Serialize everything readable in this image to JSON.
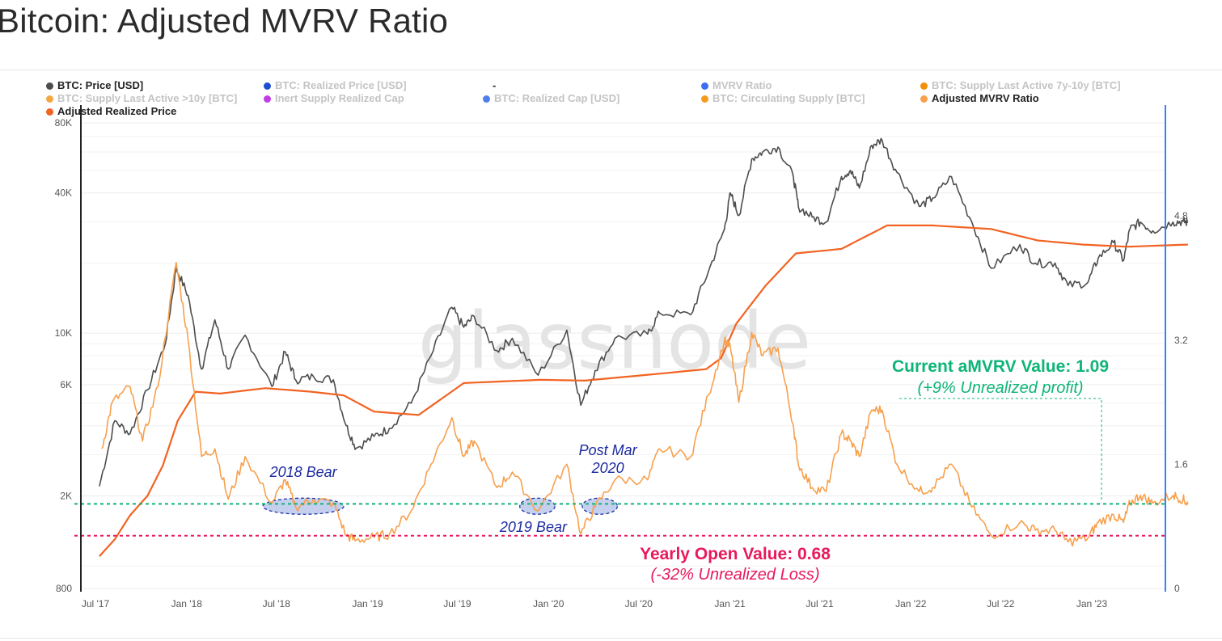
{
  "page": {
    "title": "Bitcoin: Adjusted MVRV Ratio"
  },
  "legend": [
    {
      "label": "BTC: Price [USD]",
      "color": "#4d4d4d",
      "active": true
    },
    {
      "label": "BTC: Realized Price [USD]",
      "color": "#1f4fd1",
      "active": false
    },
    {
      "label": "-",
      "color": "",
      "active": true
    },
    {
      "label": "MVRV Ratio",
      "color": "#3d6df2",
      "active": false
    },
    {
      "label": "BTC: Supply Last Active 7y-10y [BTC]",
      "color": "#f0900a",
      "active": false
    },
    {
      "label": "BTC: Supply Last Active >10y [BTC]",
      "color": "#f5a742",
      "active": false
    },
    {
      "label": "Inert Supply Realized Cap",
      "color": "#c23ce6",
      "active": false
    },
    {
      "label": "BTC: Realized Cap [USD]",
      "color": "#4d7ff0",
      "active": false
    },
    {
      "label": "BTC: Circulating Supply [BTC]",
      "color": "#f59a1e",
      "active": false
    },
    {
      "label": "Adjusted MVRV Ratio",
      "color": "#f7a04d",
      "active": true
    },
    {
      "label": "Adjusted Realized Price",
      "color": "#f26322",
      "active": true
    }
  ],
  "watermark": "glassnode",
  "chart_data": {
    "type": "line",
    "x_ticks": [
      "Jul '17",
      "Jan '18",
      "Jul '18",
      "Jan '19",
      "Jul '19",
      "Jan '20",
      "Jul '20",
      "Jan '21",
      "Jul '21",
      "Jan '22",
      "Jul '22",
      "Jan '23"
    ],
    "y_left": {
      "scale": "log",
      "range": [
        800,
        80000
      ],
      "ticks": [
        "80K",
        "40K",
        "10K",
        "6K",
        "2K",
        "800"
      ],
      "tick_values": [
        80000,
        40000,
        10000,
        6000,
        2000,
        800
      ]
    },
    "y_right": {
      "scale": "linear",
      "range": [
        0,
        6
      ],
      "ticks": [
        "4.8",
        "3.2",
        "1.6",
        "0"
      ],
      "tick_values": [
        4.8,
        3.2,
        1.6,
        0
      ]
    },
    "series": [
      {
        "name": "BTC: Price [USD]",
        "color": "#4d4d4d",
        "axis": "left",
        "points": [
          [
            "2017-07-15",
            2200
          ],
          [
            "2017-08-15",
            4200
          ],
          [
            "2017-09-15",
            3700
          ],
          [
            "2017-10-20",
            5700
          ],
          [
            "2017-11-25",
            9000
          ],
          [
            "2017-12-17",
            19000
          ],
          [
            "2018-01-10",
            14500
          ],
          [
            "2018-02-06",
            7000
          ],
          [
            "2018-03-05",
            11400
          ],
          [
            "2018-04-01",
            7000
          ],
          [
            "2018-05-05",
            9800
          ],
          [
            "2018-06-28",
            5900
          ],
          [
            "2018-07-25",
            8300
          ],
          [
            "2018-08-15",
            6300
          ],
          [
            "2018-09-20",
            6500
          ],
          [
            "2018-10-30",
            6300
          ],
          [
            "2018-11-25",
            4000
          ],
          [
            "2018-12-15",
            3200
          ],
          [
            "2019-01-20",
            3600
          ],
          [
            "2019-02-20",
            3900
          ],
          [
            "2019-04-05",
            5000
          ],
          [
            "2019-05-15",
            8000
          ],
          [
            "2019-06-26",
            12900
          ],
          [
            "2019-07-20",
            10600
          ],
          [
            "2019-08-10",
            11800
          ],
          [
            "2019-09-25",
            8400
          ],
          [
            "2019-10-26",
            9500
          ],
          [
            "2019-12-17",
            6600
          ],
          [
            "2020-02-13",
            10300
          ],
          [
            "2020-03-12",
            4900
          ],
          [
            "2020-04-10",
            6900
          ],
          [
            "2020-05-20",
            9500
          ],
          [
            "2020-07-25",
            9900
          ],
          [
            "2020-08-18",
            12200
          ],
          [
            "2020-10-20",
            12000
          ],
          [
            "2020-11-25",
            18500
          ],
          [
            "2020-12-27",
            28000
          ],
          [
            "2021-01-08",
            40000
          ],
          [
            "2021-01-25",
            32000
          ],
          [
            "2021-02-20",
            56000
          ],
          [
            "2021-03-14",
            60000
          ],
          [
            "2021-04-14",
            63000
          ],
          [
            "2021-05-15",
            47000
          ],
          [
            "2021-05-25",
            35000
          ],
          [
            "2021-06-22",
            31500
          ],
          [
            "2021-07-20",
            30000
          ],
          [
            "2021-08-20",
            47000
          ],
          [
            "2021-09-07",
            50000
          ],
          [
            "2021-09-25",
            42000
          ],
          [
            "2021-10-20",
            64000
          ],
          [
            "2021-11-10",
            67500
          ],
          [
            "2021-12-10",
            49000
          ],
          [
            "2022-01-24",
            35000
          ],
          [
            "2022-02-20",
            38000
          ],
          [
            "2022-03-30",
            47000
          ],
          [
            "2022-05-10",
            30000
          ],
          [
            "2022-06-18",
            19000
          ],
          [
            "2022-08-15",
            24000
          ],
          [
            "2022-09-15",
            20000
          ],
          [
            "2022-10-25",
            20000
          ],
          [
            "2022-11-20",
            16000
          ],
          [
            "2022-12-30",
            16500
          ],
          [
            "2023-01-20",
            21000
          ],
          [
            "2023-02-20",
            24500
          ],
          [
            "2023-03-12",
            20500
          ],
          [
            "2023-03-25",
            28000
          ],
          [
            "2023-04-15",
            30000
          ],
          [
            "2023-05-10",
            27500
          ],
          [
            "2023-06-20",
            30000
          ],
          [
            "2023-07-10",
            30200
          ],
          [
            "2023-07-20",
            29800
          ]
        ]
      },
      {
        "name": "Adjusted Realized Price",
        "color": "#f26322",
        "axis": "left",
        "points": [
          [
            "2017-07-15",
            1100
          ],
          [
            "2017-08-15",
            1300
          ],
          [
            "2017-09-15",
            1650
          ],
          [
            "2017-10-20",
            2000
          ],
          [
            "2017-11-20",
            2700
          ],
          [
            "2017-12-20",
            4200
          ],
          [
            "2018-01-25",
            5600
          ],
          [
            "2018-03-15",
            5500
          ],
          [
            "2018-06-15",
            5800
          ],
          [
            "2018-09-15",
            5600
          ],
          [
            "2018-11-20",
            5400
          ],
          [
            "2019-01-20",
            4600
          ],
          [
            "2019-04-20",
            4450
          ],
          [
            "2019-07-20",
            6100
          ],
          [
            "2019-12-20",
            6300
          ],
          [
            "2020-03-20",
            6250
          ],
          [
            "2020-08-20",
            6700
          ],
          [
            "2020-11-20",
            7000
          ],
          [
            "2020-12-20",
            7800
          ],
          [
            "2021-01-20",
            11000
          ],
          [
            "2021-03-20",
            16000
          ],
          [
            "2021-05-20",
            22000
          ],
          [
            "2021-08-20",
            23000
          ],
          [
            "2021-11-20",
            29000
          ],
          [
            "2022-02-20",
            29000
          ],
          [
            "2022-06-18",
            28000
          ],
          [
            "2022-09-20",
            25000
          ],
          [
            "2022-12-20",
            24000
          ],
          [
            "2023-03-20",
            23500
          ],
          [
            "2023-07-20",
            24000
          ]
        ]
      },
      {
        "name": "Adjusted MVRV Ratio",
        "color": "#f7a04d",
        "axis": "right",
        "points": [
          [
            "2017-07-20",
            1.8
          ],
          [
            "2017-08-10",
            2.4
          ],
          [
            "2017-09-15",
            2.6
          ],
          [
            "2017-10-10",
            1.9
          ],
          [
            "2017-11-10",
            2.6
          ],
          [
            "2017-12-17",
            4.2
          ],
          [
            "2018-01-10",
            3.2
          ],
          [
            "2018-02-06",
            1.7
          ],
          [
            "2018-03-05",
            1.8
          ],
          [
            "2018-04-01",
            1.15
          ],
          [
            "2018-05-05",
            1.7
          ],
          [
            "2018-06-28",
            1.1
          ],
          [
            "2018-07-25",
            1.4
          ],
          [
            "2018-08-15",
            1.05
          ],
          [
            "2018-09-20",
            1.15
          ],
          [
            "2018-10-30",
            1.1
          ],
          [
            "2018-11-25",
            0.68
          ],
          [
            "2018-12-15",
            0.62
          ],
          [
            "2019-01-20",
            0.66
          ],
          [
            "2019-02-20",
            0.7
          ],
          [
            "2019-04-05",
            1.0
          ],
          [
            "2019-05-15",
            1.6
          ],
          [
            "2019-06-26",
            2.2
          ],
          [
            "2019-07-20",
            1.7
          ],
          [
            "2019-08-10",
            1.9
          ],
          [
            "2019-09-25",
            1.3
          ],
          [
            "2019-10-26",
            1.5
          ],
          [
            "2019-12-17",
            1.0
          ],
          [
            "2020-02-13",
            1.6
          ],
          [
            "2020-03-12",
            0.7
          ],
          [
            "2020-04-10",
            1.05
          ],
          [
            "2020-05-20",
            1.4
          ],
          [
            "2020-07-25",
            1.4
          ],
          [
            "2020-08-18",
            1.8
          ],
          [
            "2020-10-20",
            1.7
          ],
          [
            "2020-11-25",
            2.5
          ],
          [
            "2020-12-27",
            3.2
          ],
          [
            "2021-01-08",
            3.1
          ],
          [
            "2021-01-25",
            2.4
          ],
          [
            "2021-02-20",
            3.3
          ],
          [
            "2021-03-14",
            3.0
          ],
          [
            "2021-04-14",
            3.1
          ],
          [
            "2021-05-15",
            2.1
          ],
          [
            "2021-05-25",
            1.6
          ],
          [
            "2021-06-22",
            1.3
          ],
          [
            "2021-07-20",
            1.25
          ],
          [
            "2021-08-20",
            2.0
          ],
          [
            "2021-09-07",
            1.9
          ],
          [
            "2021-09-25",
            1.7
          ],
          [
            "2021-10-20",
            2.3
          ],
          [
            "2021-11-10",
            2.3
          ],
          [
            "2021-12-10",
            1.6
          ],
          [
            "2022-01-24",
            1.25
          ],
          [
            "2022-02-20",
            1.3
          ],
          [
            "2022-03-30",
            1.6
          ],
          [
            "2022-05-10",
            1.05
          ],
          [
            "2022-06-18",
            0.68
          ],
          [
            "2022-08-15",
            0.85
          ],
          [
            "2022-09-15",
            0.75
          ],
          [
            "2022-10-25",
            0.75
          ],
          [
            "2022-11-20",
            0.6
          ],
          [
            "2022-12-30",
            0.65
          ],
          [
            "2023-01-20",
            0.85
          ],
          [
            "2023-02-20",
            0.95
          ],
          [
            "2023-03-12",
            0.85
          ],
          [
            "2023-03-25",
            1.1
          ],
          [
            "2023-04-15",
            1.2
          ],
          [
            "2023-05-10",
            1.1
          ],
          [
            "2023-06-20",
            1.2
          ],
          [
            "2023-07-10",
            1.15
          ],
          [
            "2023-07-20",
            1.09
          ]
        ]
      }
    ],
    "reference_lines": [
      {
        "label": "Current aMVRV Value: 1.09",
        "sublabel": "(+9% Unrealized profit)",
        "value": 1.09,
        "color": "#0fb478"
      },
      {
        "label": "Yearly Open Value: 0.68",
        "sublabel": "(-32% Unrealized Loss)",
        "value": 0.68,
        "color": "#e8195c"
      }
    ],
    "annotations": [
      {
        "text": "2018 Bear",
        "from": "2018-06-10",
        "to": "2018-11-20",
        "value": 1.06
      },
      {
        "text": "2019 Bear",
        "from": "2019-11-10",
        "to": "2020-01-20",
        "value": 1.06
      },
      {
        "lines": [
          "Post Mar",
          "2020"
        ],
        "from": "2020-03-15",
        "to": "2020-05-25",
        "value": 1.06
      }
    ]
  }
}
